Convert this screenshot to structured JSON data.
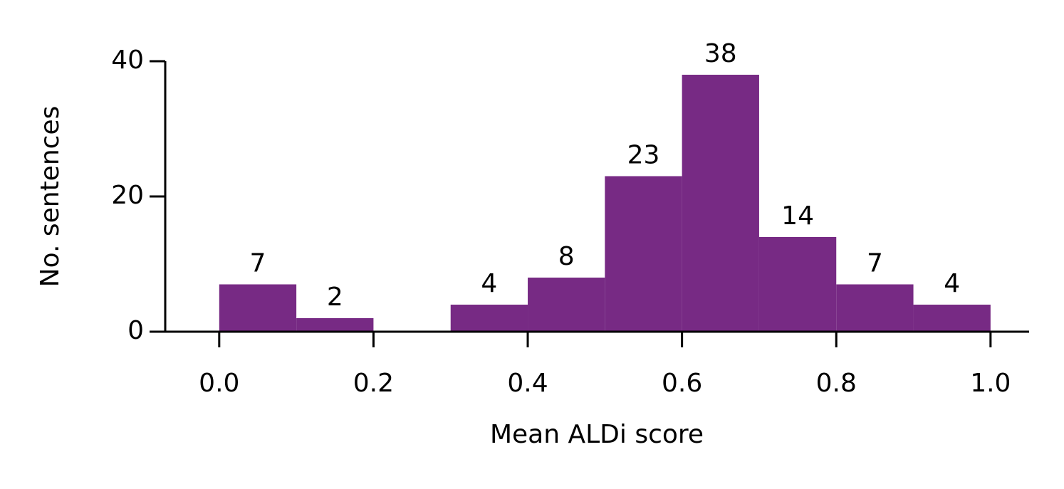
{
  "chart_data": {
    "type": "histogram",
    "xlabel": "Mean ALDi score",
    "ylabel": "No. sentences",
    "bins": [
      0.0,
      0.1,
      0.2,
      0.3,
      0.4,
      0.5,
      0.6,
      0.7,
      0.8,
      0.9,
      1.0
    ],
    "counts": [
      7,
      2,
      0,
      4,
      8,
      23,
      38,
      14,
      7,
      4
    ],
    "value_labels": [
      "7",
      "2",
      null,
      "4",
      "8",
      "23",
      "38",
      "14",
      "7",
      "4"
    ],
    "color": "#772a84",
    "xlim": [
      -0.07,
      1.05
    ],
    "ylim": [
      0,
      40
    ],
    "xticks": [
      {
        "value": 0,
        "label": "0.0"
      },
      {
        "value": 0.2,
        "label": "0.2"
      },
      {
        "value": 0.4,
        "label": "0.4"
      },
      {
        "value": 0.6,
        "label": "0.6"
      },
      {
        "value": 0.8,
        "label": "0.8"
      },
      {
        "value": 1,
        "label": "1.0"
      }
    ],
    "yticks": [
      0,
      20,
      40
    ]
  }
}
